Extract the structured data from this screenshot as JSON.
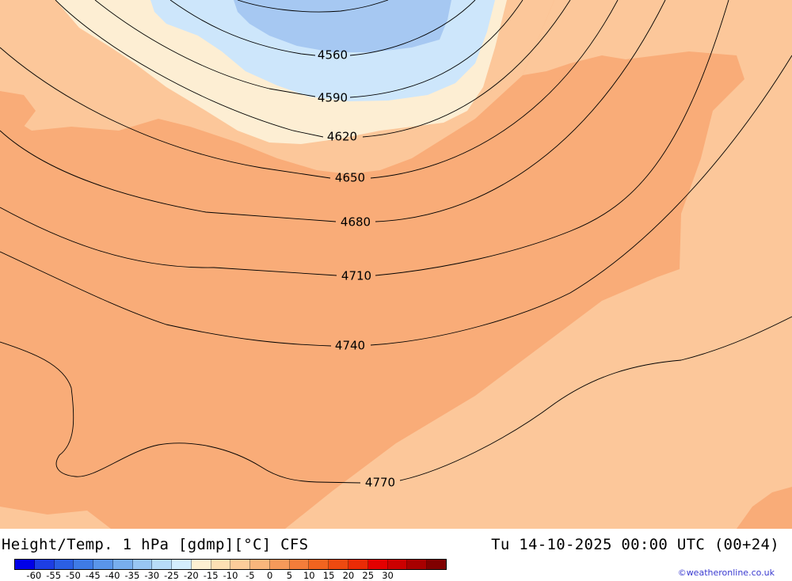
{
  "map": {
    "colors": {
      "zone_deep_blue": "#a6c8f2",
      "zone_light_blue": "#cde6fb",
      "zone_cream": "#fdeed3",
      "zone_light_orange": "#fcc79a",
      "zone_orange": "#f9ac78"
    },
    "contours": [
      {
        "label": "4560"
      },
      {
        "label": "4590"
      },
      {
        "label": "4620"
      },
      {
        "label": "4650"
      },
      {
        "label": "4680"
      },
      {
        "label": "4710"
      },
      {
        "label": "4740"
      },
      {
        "label": "4770"
      }
    ]
  },
  "footer": {
    "title_left": "Height/Temp. 1 hPa [gdmp][°C] CFS",
    "title_right": "Tu 14-10-2025 00:00 UTC (00+24)",
    "credit": "©weatheronline.co.uk"
  },
  "legend": {
    "swatches": [
      "#0000e8",
      "#1d3ee4",
      "#2b5fe3",
      "#3f7be6",
      "#5a95ea",
      "#78aeee",
      "#98c6f3",
      "#b7dcf8",
      "#d4eefd",
      "#fdf0d2",
      "#fde0b4",
      "#fccd9a",
      "#f9b67c",
      "#f69a5a",
      "#f47d3a",
      "#f2641f",
      "#ee4a10",
      "#ea2b06",
      "#e40000",
      "#cc0000",
      "#a80000",
      "#800000"
    ],
    "ticks": [
      "-60",
      "-55",
      "-50",
      "-45",
      "-40",
      "-35",
      "-30",
      "-25",
      "-20",
      "-15",
      "-10",
      "-5",
      "0",
      "5",
      "10",
      "15",
      "20",
      "25",
      "30"
    ]
  }
}
